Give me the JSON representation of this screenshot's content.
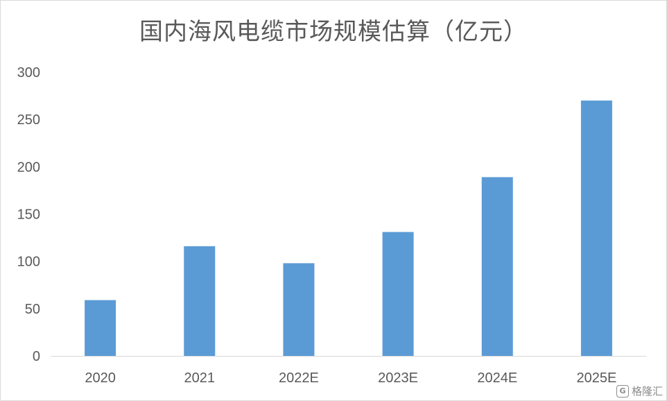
{
  "chart_data": {
    "type": "bar",
    "title": "国内海风电缆市场规模估算（亿元）",
    "categories": [
      "2020",
      "2021",
      "2022E",
      "2023E",
      "2024E",
      "2025E"
    ],
    "values": [
      59,
      116,
      98,
      131,
      189,
      270
    ],
    "ylim": [
      0,
      300
    ],
    "yticks": [
      0,
      50,
      100,
      150,
      200,
      250,
      300
    ],
    "grid": false,
    "legend": "none",
    "bar_color": "#5b9bd5"
  },
  "watermark": {
    "icon_text": "G",
    "label": "格隆汇"
  }
}
